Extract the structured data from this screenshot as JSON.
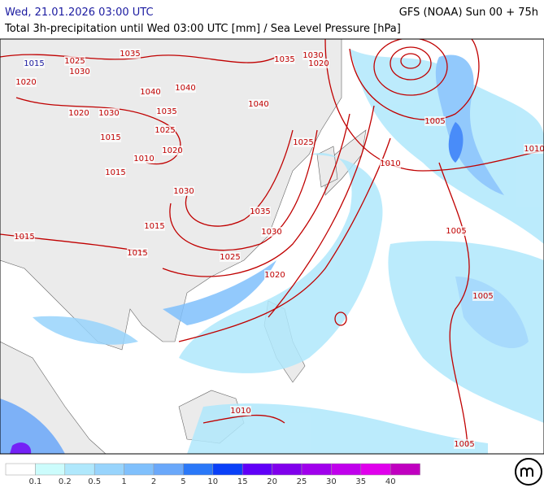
{
  "header": {
    "date": "Wed, 21.01.2026 03:00 UTC",
    "model": "GFS (NOAA) Sun 00 + 75h",
    "subtitle": "Total 3h-precipitation until Wed 03:00 UTC [mm] / Sea Level Pressure [hPa]"
  },
  "isobar_labels": [
    "1015",
    "1025",
    "1035",
    "1035",
    "1030",
    "1020",
    "1020",
    "1030",
    "1040",
    "1040",
    "1040",
    "1035",
    "1020",
    "1030",
    "1015",
    "1025",
    "1020",
    "1010",
    "1015",
    "1025",
    "1005",
    "1010",
    "1010",
    "1030",
    "1015",
    "1035",
    "1030",
    "1015",
    "1005",
    "1015",
    "1025",
    "1020",
    "1005",
    "1010",
    "1005"
  ],
  "legend": {
    "colors": [
      "#ffffff",
      "#ccfcfc",
      "#b0e8fc",
      "#98d4fc",
      "#80c0fc",
      "#6aa8fa",
      "#2a78f8",
      "#0a40f8",
      "#6000f8",
      "#8000ec",
      "#a000ec",
      "#c000ec",
      "#e000ec",
      "#c000c0"
    ],
    "labels": [
      "0.1",
      "0.2",
      "0.5",
      "1",
      "2",
      "5",
      "10",
      "15",
      "20",
      "25",
      "30",
      "35",
      "40"
    ]
  }
}
